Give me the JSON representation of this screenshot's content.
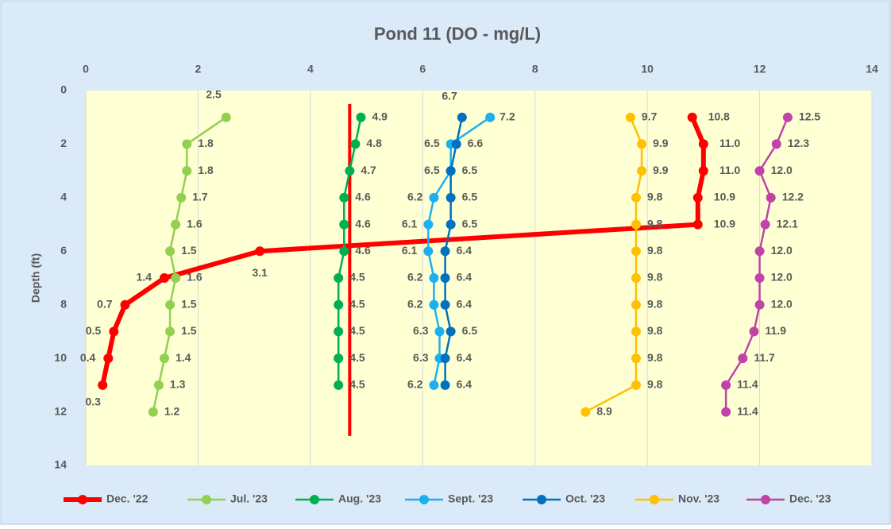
{
  "chart_data": {
    "type": "line",
    "title": "Pond 11 (DO - mg/L)",
    "ylabel": "Depth (ft)",
    "xlim": [
      0,
      14
    ],
    "xticks": [
      0,
      2,
      4,
      6,
      8,
      10,
      12,
      14
    ],
    "ylim": [
      0,
      14
    ],
    "yticks": [
      0,
      2,
      4,
      6,
      8,
      10,
      12,
      14
    ],
    "y_inverted": true,
    "grid": "x",
    "legend": "bottom",
    "reference_line": {
      "x": 4.7,
      "y": [
        0.5,
        12.9
      ],
      "color": "#ff0000"
    },
    "series": [
      {
        "name": "Dec. '22",
        "color": "#ff0000",
        "depths": [
          1,
          2,
          3,
          4,
          5,
          6,
          7,
          8,
          9,
          10,
          11
        ],
        "values": [
          10.8,
          11.0,
          11.0,
          10.9,
          10.9,
          3.1,
          1.4,
          0.7,
          0.5,
          0.4,
          0.3
        ],
        "value_labels": [
          "10.8",
          "11.0",
          "11.0",
          "10.9",
          "10.9",
          "3.1",
          "1.4",
          "0.7",
          "0.5",
          "0.4",
          "0.3"
        ]
      },
      {
        "name": "Jul. '23",
        "color": "#92d050",
        "depths": [
          1,
          2,
          3,
          4,
          5,
          6,
          7,
          8,
          9,
          10,
          11,
          12
        ],
        "values": [
          2.5,
          1.8,
          1.8,
          1.7,
          1.6,
          1.5,
          1.6,
          1.5,
          1.5,
          1.4,
          1.3,
          1.2
        ],
        "value_labels": [
          "2.5",
          "1.8",
          "1.8",
          "1.7",
          "1.6",
          "1.5",
          "1.6",
          "1.5",
          "1.5",
          "1.4",
          "1.3",
          "1.2"
        ]
      },
      {
        "name": "Aug. '23",
        "color": "#00b050",
        "depths": [
          1,
          2,
          3,
          4,
          5,
          6,
          7,
          8,
          9,
          10,
          11
        ],
        "values": [
          4.9,
          4.8,
          4.7,
          4.6,
          4.6,
          4.6,
          4.5,
          4.5,
          4.5,
          4.5,
          4.5
        ],
        "value_labels": [
          "4.9",
          "4.8",
          "4.7",
          "4.6",
          "4.6",
          "4.6",
          "4.5",
          "4.5",
          "4.5",
          "4.5",
          "4.5"
        ]
      },
      {
        "name": "Sept. '23",
        "color": "#1cb0f0",
        "depths": [
          1,
          2,
          3,
          4,
          5,
          6,
          7,
          8,
          9,
          10,
          11
        ],
        "values": [
          7.2,
          6.5,
          6.5,
          6.2,
          6.1,
          6.1,
          6.2,
          6.2,
          6.3,
          6.3,
          6.2
        ],
        "value_labels": [
          "7.2",
          "6.5",
          "6.5",
          "6.2",
          "6.1",
          "6.1",
          "6.2",
          "6.2",
          "6.3",
          "6.3",
          "6.2"
        ]
      },
      {
        "name": "Oct. '23",
        "color": "#0070c0",
        "depths": [
          1,
          2,
          3,
          4,
          5,
          6,
          7,
          8,
          9,
          10,
          11
        ],
        "values": [
          6.7,
          6.6,
          6.5,
          6.5,
          6.5,
          6.4,
          6.4,
          6.4,
          6.5,
          6.4,
          6.4
        ],
        "value_labels": [
          "6.7",
          "6.6",
          "6.5",
          "6.5",
          "6.5",
          "6.4",
          "6.4",
          "6.4",
          "6.5",
          "6.4",
          "6.4"
        ]
      },
      {
        "name": "Nov. '23",
        "color": "#ffc000",
        "depths": [
          1,
          2,
          3,
          4,
          5,
          6,
          7,
          8,
          9,
          10,
          11,
          12
        ],
        "values": [
          9.7,
          9.9,
          9.9,
          9.8,
          9.8,
          9.8,
          9.8,
          9.8,
          9.8,
          9.8,
          9.8,
          8.9
        ],
        "value_labels": [
          "9.7",
          "9.9",
          "9.9",
          "9.8",
          "9.8",
          "9.8",
          "9.8",
          "9.8",
          "9.8",
          "9.8",
          "9.8",
          "8.9"
        ]
      },
      {
        "name": "Dec. '23",
        "color": "#c043a8",
        "depths": [
          1,
          2,
          3,
          4,
          5,
          6,
          7,
          8,
          9,
          10,
          11,
          12
        ],
        "values": [
          12.5,
          12.3,
          12.0,
          12.2,
          12.1,
          12.0,
          12.0,
          12.0,
          11.9,
          11.7,
          11.4,
          11.4
        ],
        "value_labels": [
          "12.5",
          "12.3",
          "12.0",
          "12.2",
          "12.1",
          "12.0",
          "12.0",
          "12.0",
          "11.9",
          "11.7",
          "11.4",
          "11.4"
        ]
      }
    ]
  }
}
